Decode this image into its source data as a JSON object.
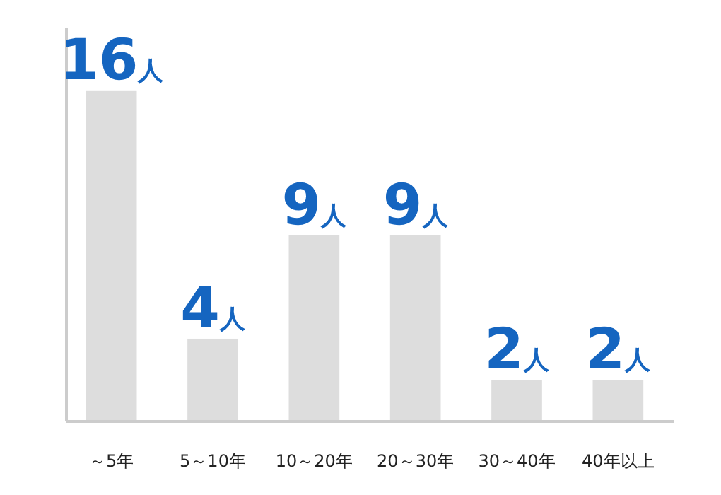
{
  "chart_data": {
    "type": "bar",
    "categories": [
      "～5年",
      "5～10年",
      "10～20年",
      "20～30年",
      "30～40年",
      "40年以上"
    ],
    "values": [
      16,
      4,
      9,
      9,
      2,
      2
    ],
    "value_labels": [
      "16人",
      "4人",
      "9人",
      "9人",
      "2人",
      "2人"
    ],
    "color": "#dddddd",
    "ylim": [
      0,
      19
    ],
    "tick_labels": "x"
  }
}
